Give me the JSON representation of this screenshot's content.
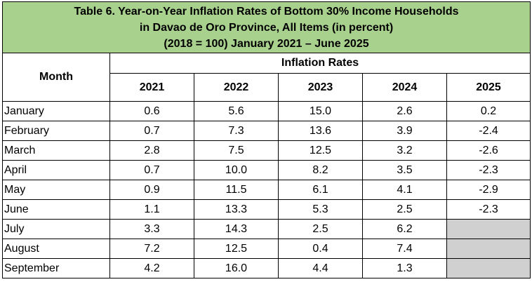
{
  "title_lines": [
    "Table 6. Year-on-Year Inflation Rates of Bottom 30% Income Households",
    "in Davao de Oro Province, All Items (in percent)",
    "(2018 = 100) January 2021 – June 2025"
  ],
  "header": {
    "month": "Month",
    "group": "Inflation Rates",
    "years": [
      "2021",
      "2022",
      "2023",
      "2024",
      "2025"
    ]
  },
  "rows": [
    {
      "month": "January",
      "values": [
        "0.6",
        "5.6",
        "15.0",
        "2.6",
        "0.2"
      ]
    },
    {
      "month": "February",
      "values": [
        "0.7",
        "7.3",
        "13.6",
        "3.9",
        "-2.4"
      ]
    },
    {
      "month": "March",
      "values": [
        "2.8",
        "7.5",
        "12.5",
        "3.2",
        "-2.6"
      ]
    },
    {
      "month": "April",
      "values": [
        "0.7",
        "10.0",
        "8.2",
        "3.5",
        "-2.3"
      ]
    },
    {
      "month": "May",
      "values": [
        "0.9",
        "11.5",
        "6.1",
        "4.1",
        "-2.9"
      ]
    },
    {
      "month": "June",
      "values": [
        "1.1",
        "13.3",
        "5.3",
        "2.5",
        "-2.3"
      ]
    },
    {
      "month": "July",
      "values": [
        "3.3",
        "14.3",
        "2.5",
        "6.2",
        ""
      ]
    },
    {
      "month": "August",
      "values": [
        "7.2",
        "12.5",
        "0.4",
        "7.4",
        ""
      ]
    },
    {
      "month": "September",
      "values": [
        "4.2",
        "16.0",
        "4.4",
        "1.3",
        ""
      ]
    }
  ],
  "colors": {
    "title_bg": "#a9d18e",
    "empty_cell": "#d0d0d0"
  }
}
